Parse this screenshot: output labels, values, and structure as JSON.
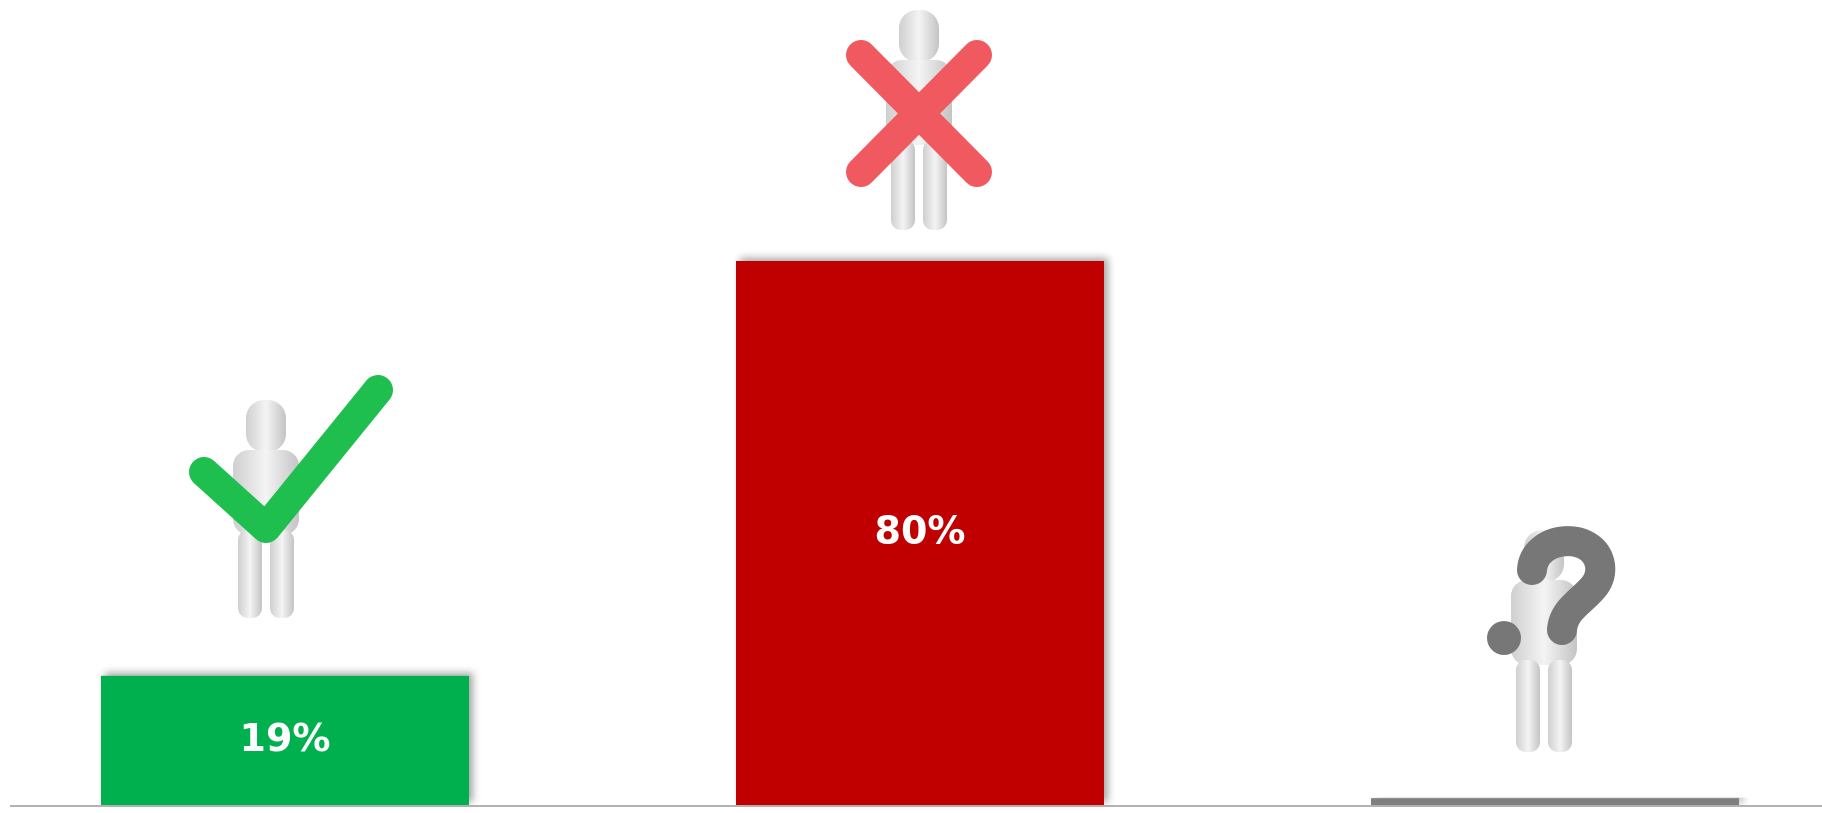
{
  "chart_data": {
    "type": "bar",
    "values": [
      19,
      80,
      1
    ],
    "value_labels": [
      "19%",
      "80%",
      null
    ],
    "colors": [
      "#00b050",
      "#c00000",
      "#7f7f7f"
    ]
  }
}
